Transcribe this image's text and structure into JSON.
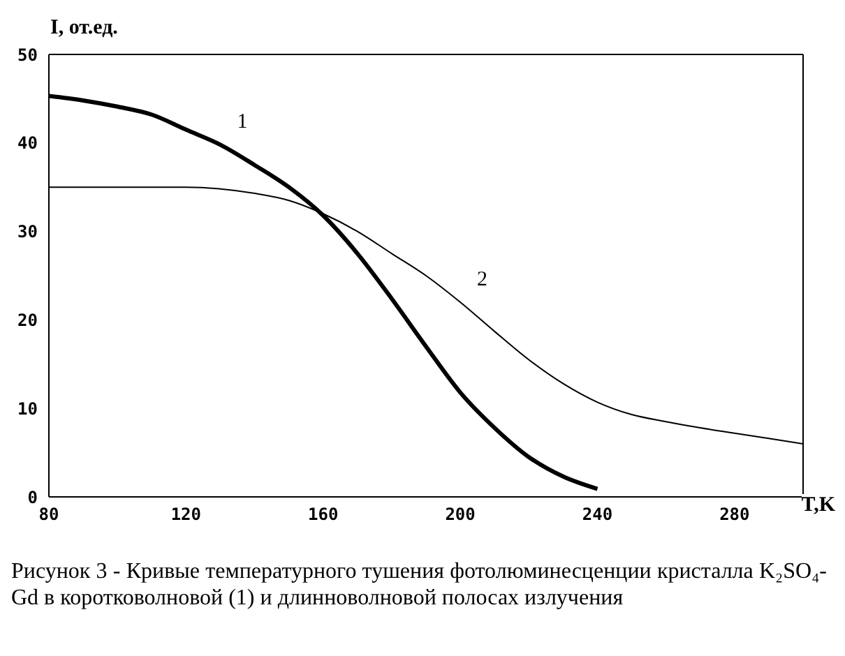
{
  "chart_data": {
    "type": "line",
    "title": "Рисунок 3 - Кривые температурного тушения фотолюминесценции кристалла K₂SO₄-Gd в коротковолновой (1) и длинноволновой полосах излучения",
    "xlabel": "T,K",
    "ylabel": "I, от.ед.",
    "xlim": [
      80,
      300
    ],
    "xticks": [
      80,
      120,
      160,
      200,
      240,
      280
    ],
    "ylim": [
      0,
      50
    ],
    "yticks": [
      0,
      10,
      20,
      30,
      40,
      50
    ],
    "grid": false,
    "legend": false,
    "marker": "none",
    "line_style": "solid",
    "series": [
      {
        "name": "1",
        "color": "#000000",
        "x": [
          80,
          90,
          100,
          110,
          120,
          130,
          140,
          150,
          160,
          170,
          180,
          190,
          200,
          210,
          220,
          230,
          240
        ],
        "values": [
          45.3,
          44.8,
          44.1,
          43.2,
          41.5,
          39.8,
          37.5,
          35,
          31.8,
          27.5,
          22.4,
          17,
          11.8,
          7.8,
          4.5,
          2.3,
          0.9
        ]
      },
      {
        "name": "2",
        "color": "#000000",
        "x": [
          80,
          100,
          120,
          140,
          150,
          160,
          170,
          180,
          190,
          200,
          210,
          220,
          230,
          240,
          250,
          260,
          270,
          280,
          290,
          300
        ],
        "values": [
          35,
          35,
          35,
          34.3,
          33.5,
          32,
          30,
          27.5,
          25,
          22,
          18.7,
          15.5,
          12.8,
          10.7,
          9.3,
          8.5,
          7.8,
          7.2,
          6.6,
          6
        ]
      }
    ]
  }
}
